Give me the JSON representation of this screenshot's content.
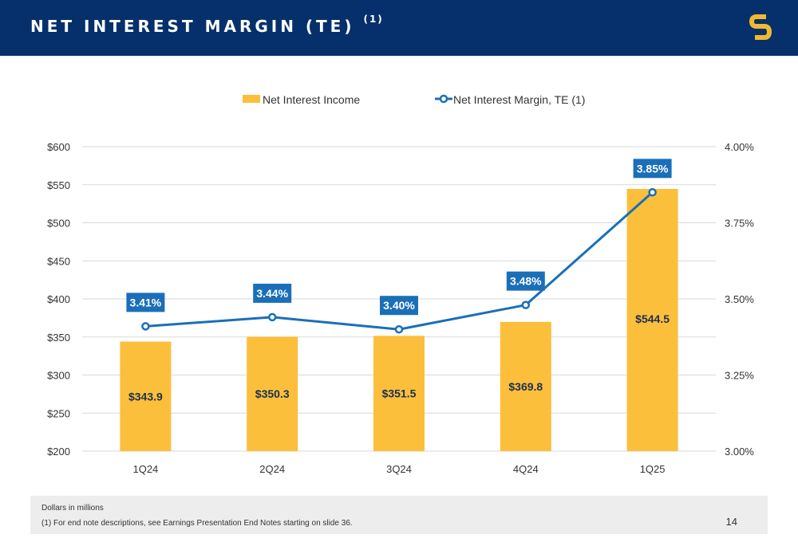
{
  "header": {
    "title": "NET INTEREST MARGIN (TE)",
    "title_note": "(1)",
    "logo_icon": "brand-s-logo-icon",
    "logo_color": "#f2b830",
    "background_color": "#05306b"
  },
  "chart_data": {
    "type": "bar",
    "categories": [
      "1Q24",
      "2Q24",
      "3Q24",
      "4Q24",
      "1Q25"
    ],
    "series": [
      {
        "name": "Net Interest Income",
        "type": "bar",
        "axis": "left",
        "color": "#fbbf3c",
        "values": [
          343.9,
          350.3,
          351.5,
          369.8,
          544.5
        ],
        "labels": [
          "$343.9",
          "$350.3",
          "$351.5",
          "$369.8",
          "$544.5"
        ]
      },
      {
        "name": "Net Interest Margin, TE (1)",
        "type": "line",
        "axis": "right",
        "color": "#1a6fb8",
        "values": [
          3.41,
          3.44,
          3.4,
          3.48,
          3.85
        ],
        "labels": [
          "3.41%",
          "3.44%",
          "3.40%",
          "3.48%",
          "3.85%"
        ]
      }
    ],
    "y_left": {
      "min": 200,
      "max": 600,
      "ticks": [
        200,
        250,
        300,
        350,
        400,
        450,
        500,
        550,
        600
      ],
      "tick_labels": [
        "$200",
        "$250",
        "$300",
        "$350",
        "$400",
        "$450",
        "$500",
        "$550",
        "$600"
      ]
    },
    "y_right": {
      "min": 3.0,
      "max": 4.0,
      "ticks": [
        3.0,
        3.25,
        3.5,
        3.75,
        4.0
      ],
      "tick_labels": [
        "3.00%",
        "3.25%",
        "3.50%",
        "3.75%",
        "4.00%"
      ]
    },
    "grid": true,
    "legend_position": "top-center",
    "label_box_color": "#1a6fb8",
    "bar_label_color": "#1c2f4f"
  },
  "footer": {
    "note_units": "Dollars in millions",
    "note_1": "(1)  For end note descriptions, see Earnings Presentation End Notes starting on slide 36.",
    "page_number": "14"
  }
}
